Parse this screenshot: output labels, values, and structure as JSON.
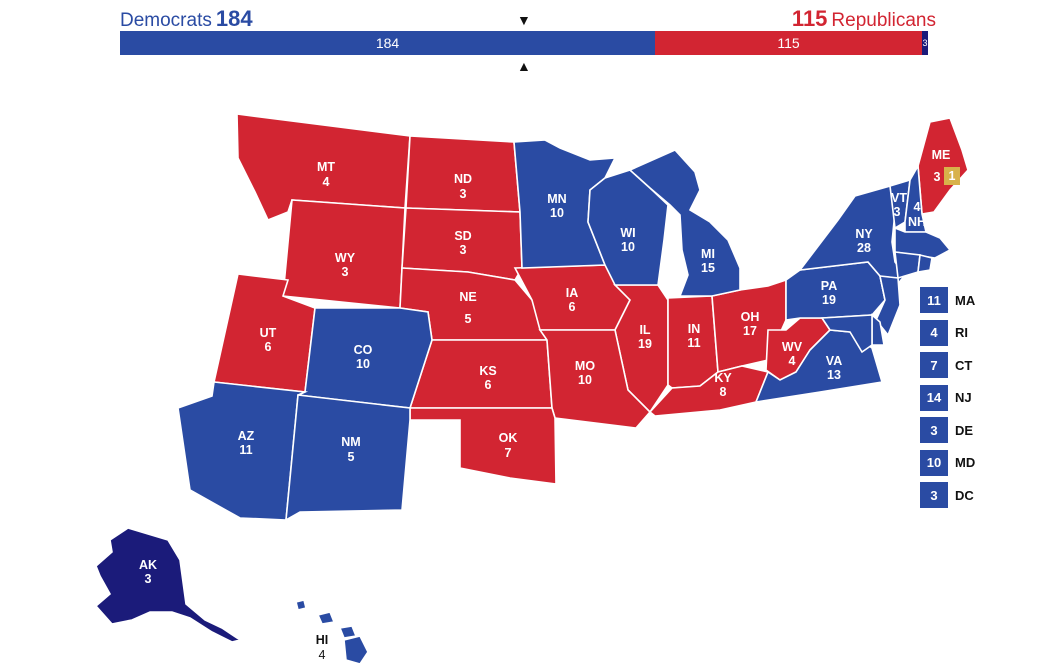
{
  "tally": {
    "dem_label": "Democrats",
    "dem_total": "184",
    "rep_label": "Republicans",
    "rep_total": "115",
    "bar_dem_value": "184",
    "bar_rep_value": "115",
    "bar_tossup_value": "3",
    "dem_fraction": 0.662,
    "rep_fraction": 0.33,
    "tossup_fraction": 0.008,
    "marker_up": "▼",
    "marker_down": "▲"
  },
  "colors": {
    "democrat": "#2a4ba3",
    "republican": "#d22532",
    "dark_democrat": "#1b1b7a",
    "split": "#d8b24a"
  },
  "states": {
    "mt": {
      "abbr": "MT",
      "votes": "4"
    },
    "nd": {
      "abbr": "ND",
      "votes": "3"
    },
    "mn": {
      "abbr": "MN",
      "votes": "10"
    },
    "wi": {
      "abbr": "WI",
      "votes": "10"
    },
    "mi": {
      "abbr": "MI",
      "votes": "15"
    },
    "wy": {
      "abbr": "WY",
      "votes": "3"
    },
    "sd": {
      "abbr": "SD",
      "votes": "3"
    },
    "ne": {
      "abbr": "NE",
      "votes": "5"
    },
    "ia": {
      "abbr": "IA",
      "votes": "6"
    },
    "il": {
      "abbr": "IL",
      "votes": "19"
    },
    "in": {
      "abbr": "IN",
      "votes": "11"
    },
    "oh": {
      "abbr": "OH",
      "votes": "17"
    },
    "ut": {
      "abbr": "UT",
      "votes": "6"
    },
    "co": {
      "abbr": "CO",
      "votes": "10"
    },
    "ks": {
      "abbr": "KS",
      "votes": "6"
    },
    "mo": {
      "abbr": "MO",
      "votes": "10"
    },
    "ky": {
      "abbr": "KY",
      "votes": "8"
    },
    "wv": {
      "abbr": "WV",
      "votes": "4"
    },
    "va": {
      "abbr": "VA",
      "votes": "13"
    },
    "pa": {
      "abbr": "PA",
      "votes": "19"
    },
    "ny": {
      "abbr": "NY",
      "votes": "28"
    },
    "vt": {
      "abbr": "VT",
      "votes": "3"
    },
    "nh": {
      "abbr": "NH",
      "votes": "4"
    },
    "me": {
      "abbr": "ME",
      "votes": "3",
      "split": "1"
    },
    "az": {
      "abbr": "AZ",
      "votes": "11"
    },
    "nm": {
      "abbr": "NM",
      "votes": "5"
    },
    "ok": {
      "abbr": "OK",
      "votes": "7"
    },
    "ak": {
      "abbr": "AK",
      "votes": "3"
    },
    "hi": {
      "abbr": "HI",
      "votes": "4"
    }
  },
  "small_states": [
    {
      "abbr": "MA",
      "votes": "11"
    },
    {
      "abbr": "RI",
      "votes": "4"
    },
    {
      "abbr": "CT",
      "votes": "7"
    },
    {
      "abbr": "NJ",
      "votes": "14"
    },
    {
      "abbr": "DE",
      "votes": "3"
    },
    {
      "abbr": "MD",
      "votes": "10"
    },
    {
      "abbr": "DC",
      "votes": "3"
    }
  ]
}
